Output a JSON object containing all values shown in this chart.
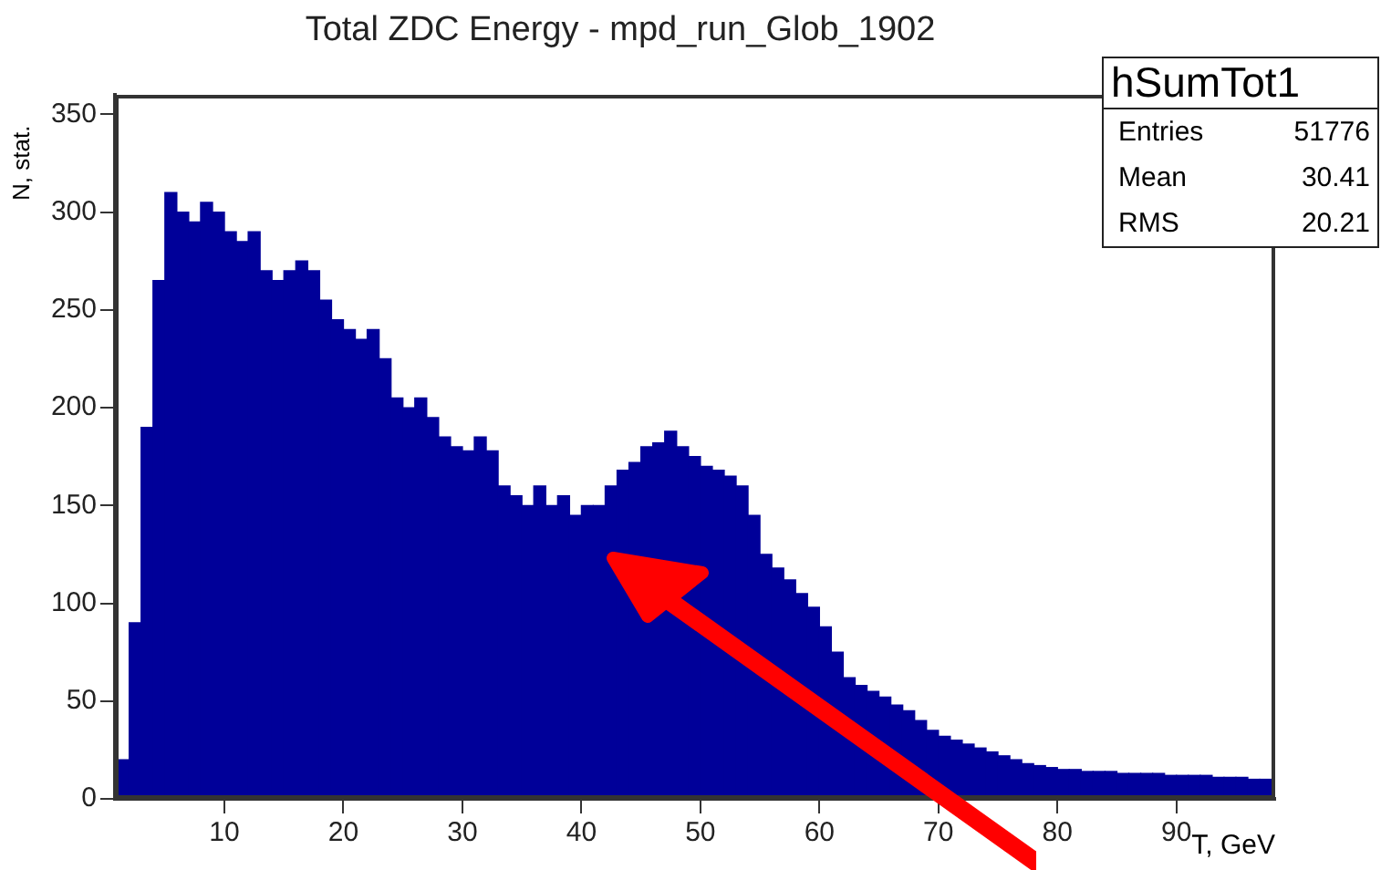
{
  "chart_data": {
    "type": "histogram",
    "title": "Total ZDC Energy - mpd_run_Glob_1902",
    "xlabel": "T, GeV",
    "ylabel": "N, stat.",
    "bins": [
      1,
      2,
      3,
      4,
      5,
      6,
      7,
      8,
      9,
      10,
      11,
      12,
      13,
      14,
      15,
      16,
      17,
      18,
      19,
      20,
      21,
      22,
      23,
      24,
      25,
      26,
      27,
      28,
      29,
      30,
      31,
      32,
      33,
      34,
      35,
      36,
      37,
      38,
      39,
      40,
      41,
      42,
      43,
      44,
      45,
      46,
      47,
      48,
      49,
      50,
      51,
      52,
      53,
      54,
      55,
      56,
      57,
      58,
      59,
      60,
      61,
      62,
      63,
      64,
      65,
      66,
      67,
      68,
      69,
      70,
      71,
      72,
      73,
      74,
      75,
      76,
      77,
      78,
      79,
      80,
      81,
      82,
      83,
      84,
      85,
      86,
      87,
      88,
      89,
      90,
      91,
      92,
      93,
      94,
      95,
      96,
      97,
      98
    ],
    "values": [
      20,
      90,
      190,
      265,
      310,
      300,
      295,
      305,
      300,
      290,
      285,
      290,
      270,
      265,
      270,
      275,
      270,
      255,
      245,
      240,
      235,
      240,
      225,
      205,
      200,
      205,
      195,
      185,
      180,
      178,
      185,
      178,
      160,
      155,
      150,
      160,
      150,
      155,
      145,
      150,
      150,
      160,
      168,
      172,
      180,
      182,
      188,
      180,
      175,
      170,
      168,
      165,
      160,
      145,
      125,
      118,
      112,
      105,
      98,
      88,
      75,
      62,
      58,
      55,
      52,
      48,
      45,
      40,
      35,
      32,
      30,
      28,
      26,
      24,
      22,
      20,
      18,
      17,
      16,
      15,
      15,
      14,
      14,
      14,
      13,
      13,
      13,
      13,
      12,
      12,
      12,
      12,
      11,
      11,
      11,
      10,
      10
    ],
    "color": "#000099",
    "xlim": [
      0.8,
      98.3
    ],
    "ylim": [
      0,
      360
    ],
    "xticks": [
      10,
      20,
      30,
      40,
      50,
      60,
      70,
      80,
      90
    ],
    "yticks": [
      0,
      50,
      100,
      150,
      200,
      250,
      300,
      350
    ],
    "grid": false,
    "legend": false,
    "annotations": [
      "hSumTot1",
      "Entries",
      "51776",
      "Mean",
      "30.41",
      "RMS",
      "20.21"
    ]
  }
}
